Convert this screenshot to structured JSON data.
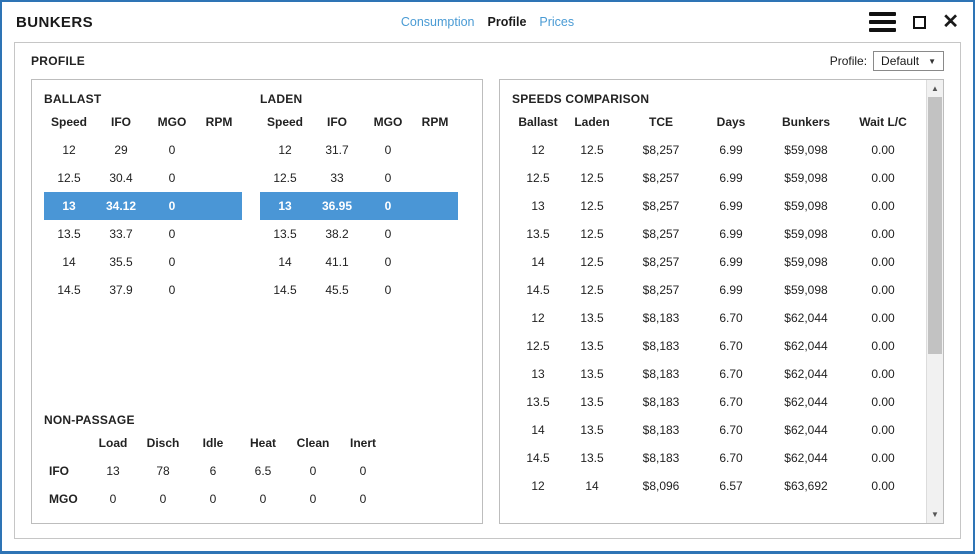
{
  "window": {
    "title": "BUNKERS",
    "tabs": [
      {
        "label": "Consumption",
        "active": false
      },
      {
        "label": "Profile",
        "active": true
      },
      {
        "label": "Prices",
        "active": false
      }
    ]
  },
  "icons": {
    "close": "✕",
    "dropdown": "▼",
    "scroll_up": "▲",
    "scroll_down": "▼"
  },
  "colors": {
    "window_border": "#2e74b5",
    "link_blue": "#4a9bd4",
    "row_highlight": "#4a96d6"
  },
  "profile_section": {
    "title": "PROFILE",
    "profile_label": "Profile:",
    "profile_value": "Default"
  },
  "ballast": {
    "title": "BALLAST",
    "columns": [
      "Speed",
      "IFO",
      "MGO",
      "RPM"
    ],
    "selected_index": 2,
    "rows": [
      {
        "speed": "12",
        "ifo": "29",
        "mgo": "0",
        "rpm": ""
      },
      {
        "speed": "12.5",
        "ifo": "30.4",
        "mgo": "0",
        "rpm": ""
      },
      {
        "speed": "13",
        "ifo": "34.12",
        "mgo": "0",
        "rpm": ""
      },
      {
        "speed": "13.5",
        "ifo": "33.7",
        "mgo": "0",
        "rpm": ""
      },
      {
        "speed": "14",
        "ifo": "35.5",
        "mgo": "0",
        "rpm": ""
      },
      {
        "speed": "14.5",
        "ifo": "37.9",
        "mgo": "0",
        "rpm": ""
      }
    ]
  },
  "laden": {
    "title": "LADEN",
    "columns": [
      "Speed",
      "IFO",
      "MGO",
      "RPM"
    ],
    "selected_index": 2,
    "rows": [
      {
        "speed": "12",
        "ifo": "31.7",
        "mgo": "0",
        "rpm": ""
      },
      {
        "speed": "12.5",
        "ifo": "33",
        "mgo": "0",
        "rpm": ""
      },
      {
        "speed": "13",
        "ifo": "36.95",
        "mgo": "0",
        "rpm": ""
      },
      {
        "speed": "13.5",
        "ifo": "38.2",
        "mgo": "0",
        "rpm": ""
      },
      {
        "speed": "14",
        "ifo": "41.1",
        "mgo": "0",
        "rpm": ""
      },
      {
        "speed": "14.5",
        "ifo": "45.5",
        "mgo": "0",
        "rpm": ""
      }
    ]
  },
  "non_passage": {
    "title": "NON-PASSAGE",
    "columns": [
      "",
      "Load",
      "Disch",
      "Idle",
      "Heat",
      "Clean",
      "Inert"
    ],
    "rows": [
      {
        "label": "IFO",
        "load": "13",
        "disch": "78",
        "idle": "6",
        "heat": "6.5",
        "clean": "0",
        "inert": "0"
      },
      {
        "label": "MGO",
        "load": "0",
        "disch": "0",
        "idle": "0",
        "heat": "0",
        "clean": "0",
        "inert": "0"
      }
    ]
  },
  "speeds_comparison": {
    "title": "SPEEDS COMPARISON",
    "columns": [
      "Ballast",
      "Laden",
      "TCE",
      "Days",
      "Bunkers",
      "Wait L/C"
    ],
    "rows": [
      {
        "ballast": "12",
        "laden": "12.5",
        "tce": "$8,257",
        "days": "6.99",
        "bunkers": "$59,098",
        "wait": "0.00"
      },
      {
        "ballast": "12.5",
        "laden": "12.5",
        "tce": "$8,257",
        "days": "6.99",
        "bunkers": "$59,098",
        "wait": "0.00"
      },
      {
        "ballast": "13",
        "laden": "12.5",
        "tce": "$8,257",
        "days": "6.99",
        "bunkers": "$59,098",
        "wait": "0.00"
      },
      {
        "ballast": "13.5",
        "laden": "12.5",
        "tce": "$8,257",
        "days": "6.99",
        "bunkers": "$59,098",
        "wait": "0.00"
      },
      {
        "ballast": "14",
        "laden": "12.5",
        "tce": "$8,257",
        "days": "6.99",
        "bunkers": "$59,098",
        "wait": "0.00"
      },
      {
        "ballast": "14.5",
        "laden": "12.5",
        "tce": "$8,257",
        "days": "6.99",
        "bunkers": "$59,098",
        "wait": "0.00"
      },
      {
        "ballast": "12",
        "laden": "13.5",
        "tce": "$8,183",
        "days": "6.70",
        "bunkers": "$62,044",
        "wait": "0.00"
      },
      {
        "ballast": "12.5",
        "laden": "13.5",
        "tce": "$8,183",
        "days": "6.70",
        "bunkers": "$62,044",
        "wait": "0.00"
      },
      {
        "ballast": "13",
        "laden": "13.5",
        "tce": "$8,183",
        "days": "6.70",
        "bunkers": "$62,044",
        "wait": "0.00"
      },
      {
        "ballast": "13.5",
        "laden": "13.5",
        "tce": "$8,183",
        "days": "6.70",
        "bunkers": "$62,044",
        "wait": "0.00"
      },
      {
        "ballast": "14",
        "laden": "13.5",
        "tce": "$8,183",
        "days": "6.70",
        "bunkers": "$62,044",
        "wait": "0.00"
      },
      {
        "ballast": "14.5",
        "laden": "13.5",
        "tce": "$8,183",
        "days": "6.70",
        "bunkers": "$62,044",
        "wait": "0.00"
      },
      {
        "ballast": "12",
        "laden": "14",
        "tce": "$8,096",
        "days": "6.57",
        "bunkers": "$63,692",
        "wait": "0.00"
      }
    ]
  }
}
